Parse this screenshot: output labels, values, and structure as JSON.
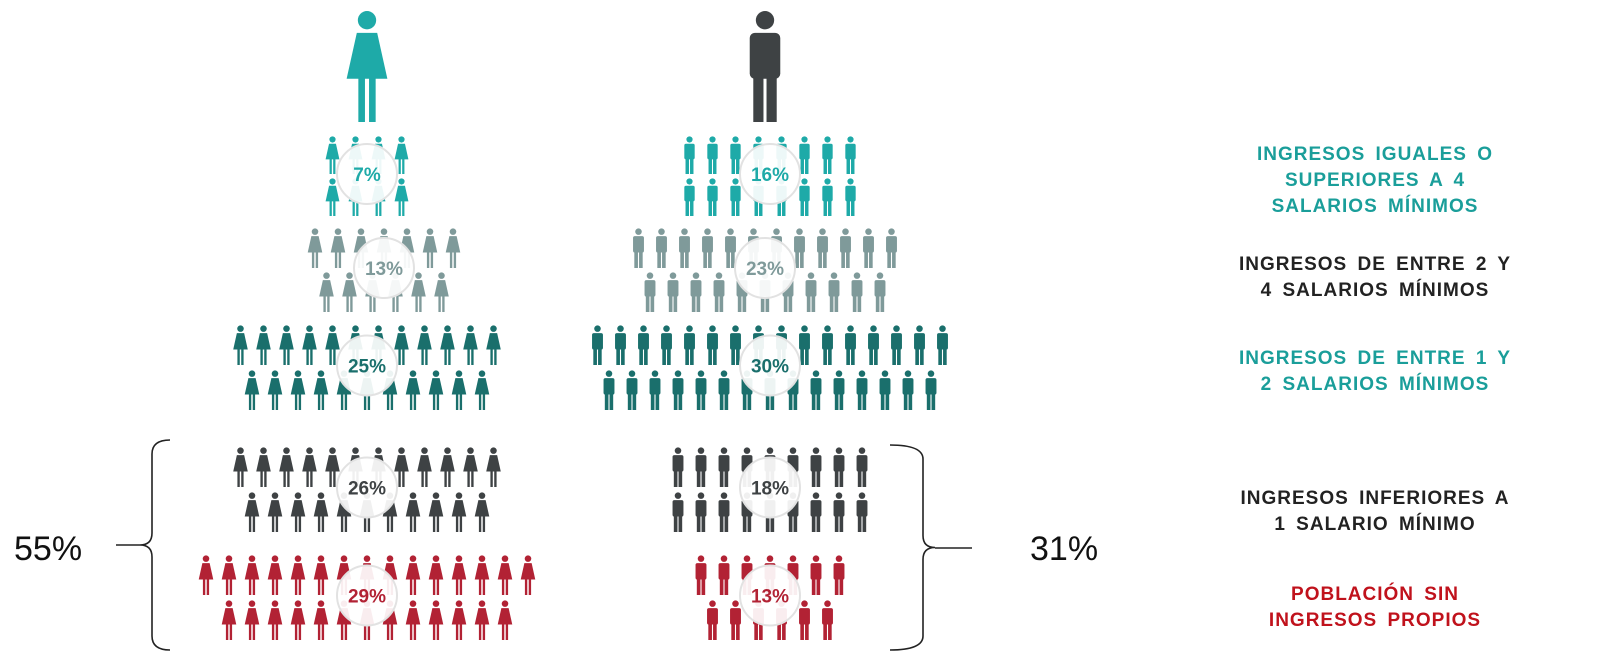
{
  "chart_data": {
    "type": "pictograph",
    "categories": [
      "Mujeres",
      "Hombres"
    ],
    "series": [
      {
        "name": "INGRESOS IGUALES O SUPERIORES A 4 SALARIOS MÍNIMOS",
        "color": "#1eaaa8",
        "values": [
          7,
          16
        ]
      },
      {
        "name": "INGRESOS DE ENTRE 2 Y 4 SALARIOS MÍNIMOS",
        "color": "#7f9a9a",
        "values": [
          13,
          23
        ]
      },
      {
        "name": "INGRESOS DE ENTRE 1 Y 2 SALARIOS MÍNIMOS",
        "color": "#1a6f6c",
        "values": [
          25,
          30
        ]
      },
      {
        "name": "INGRESOS INFERIORES A 1 SALARIO MÍNIMO",
        "color": "#3e4244",
        "values": [
          26,
          18
        ]
      },
      {
        "name": "POBLACIÓN SIN INGRESOS PROPIOS",
        "color": "#b22234",
        "values": [
          29,
          13
        ]
      }
    ],
    "value_labels": {
      "women": [
        "7%",
        "13%",
        "25%",
        "26%",
        "29%"
      ],
      "men": [
        "16%",
        "23%",
        "30%",
        "18%",
        "13%"
      ]
    },
    "bracket_labels": {
      "women": "55%",
      "men": "31%"
    },
    "legend_placement": "right"
  },
  "legend": [
    {
      "lines": [
        "INGRESOS IGUALES O",
        "SUPERIORES A 4",
        "SALARIOS MÍNIMOS"
      ],
      "color": "#1a9e9a"
    },
    {
      "lines": [
        "INGRESOS DE ENTRE 2 Y",
        "4 SALARIOS MÍNIMOS"
      ],
      "color": "#222222"
    },
    {
      "lines": [
        "INGRESOS DE ENTRE 1 Y",
        "2 SALARIOS MÍNIMOS"
      ],
      "color": "#1a9e9a"
    },
    {
      "lines": [
        "INGRESOS INFERIORES A",
        "1 SALARIO MÍNIMO"
      ],
      "color": "#222222"
    },
    {
      "lines": [
        "POBLACIÓN SIN",
        "INGRESOS PROPIOS"
      ],
      "color": "#c0121c"
    }
  ],
  "icons": {
    "women_header": "woman-icon",
    "men_header": "man-icon",
    "person": "person-icon"
  },
  "colors": {
    "woman_header": "#1eaaa8",
    "man_header": "#3e4244",
    "bubble": "#ffffff",
    "bubble_border": "#e2e2e2"
  }
}
